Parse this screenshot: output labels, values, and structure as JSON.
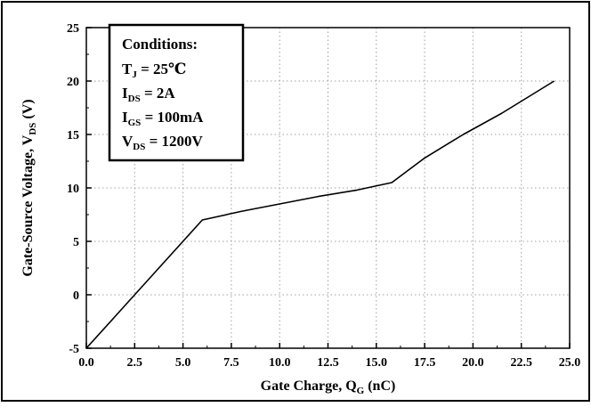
{
  "chart_data": {
    "type": "line",
    "xlabel": {
      "main": "Gate Charge, Q",
      "sub": "G",
      "tail": " (nC)"
    },
    "ylabel": {
      "main": "Gate-Source Voltage, V",
      "sub": "DS",
      "tail": " (V)"
    },
    "xlim": [
      0,
      25
    ],
    "ylim": [
      -5,
      25
    ],
    "x_ticks": [
      "0.0",
      "2.5",
      "5.0",
      "7.5",
      "10.0",
      "12.5",
      "15.0",
      "17.5",
      "20.0",
      "22.5",
      "25.0"
    ],
    "y_ticks": [
      "-5",
      "0",
      "5",
      "10",
      "15",
      "20",
      "25"
    ],
    "grid": true,
    "series": [
      {
        "x": [
          0.0,
          1.5,
          3.5,
          6.0,
          8.0,
          10.0,
          12.0,
          14.0,
          15.8,
          17.5,
          19.5,
          21.5,
          24.2
        ],
        "y": [
          -5.0,
          -2.0,
          2.0,
          7.0,
          7.8,
          8.5,
          9.2,
          9.8,
          10.5,
          12.8,
          15.0,
          17.0,
          20.0
        ]
      }
    ],
    "annotation": {
      "title": "Conditions:",
      "lines": [
        {
          "main": "T",
          "sub": "J",
          "rest": " = 25℃"
        },
        {
          "main": "I",
          "sub": "DS",
          "rest": " = 2A"
        },
        {
          "main": "I",
          "sub": "GS",
          "rest": " = 100mA"
        },
        {
          "main": "V",
          "sub": "DS",
          "rest": " = 1200V"
        }
      ]
    },
    "colors": {
      "line": "#000000",
      "grid": "#a0a0a0",
      "frame": "#000000"
    }
  }
}
